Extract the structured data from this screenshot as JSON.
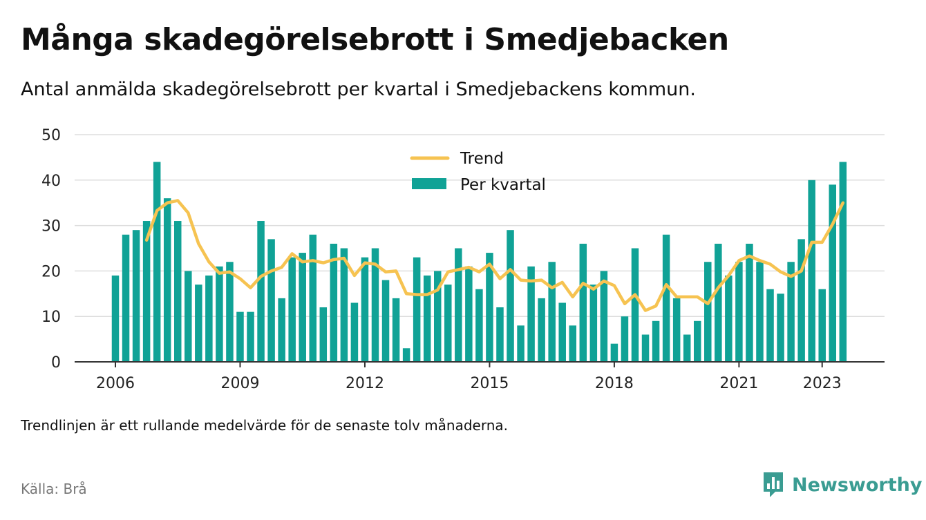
{
  "header": {
    "title": "Många skadegörelsebrott i Smedjebacken",
    "subtitle": "Antal anmälda skadegörelsebrott per kvartal i Smedjebackens kommun."
  },
  "footer": {
    "note": "Trendlinjen är ett rullande medelvärde för de senaste tolv månaderna.",
    "source": "Källa: Brå",
    "brand": "Newsworthy"
  },
  "colors": {
    "bar": "#10a296",
    "trend": "#f6c351",
    "grid": "#dddddd",
    "axis": "#333333",
    "text": "#111111",
    "brand": "#3a9c92"
  },
  "icons": {
    "brand_logo": "newsworthy-bar-chart-logo"
  },
  "chart_data": {
    "type": "bar",
    "x_start": "2006 Q1",
    "x_tick_labels": [
      "2006",
      "2009",
      "2012",
      "2015",
      "2018",
      "2021",
      "2023"
    ],
    "ylim": [
      0,
      50
    ],
    "y_ticks": [
      0,
      10,
      20,
      30,
      40,
      50
    ],
    "grid": true,
    "legend_position": "top-center",
    "series": [
      {
        "name": "Per kvartal",
        "kind": "bar",
        "values": [
          19,
          28,
          29,
          31,
          44,
          36,
          31,
          20,
          17,
          19,
          21,
          22,
          11,
          11,
          31,
          27,
          14,
          23,
          24,
          28,
          12,
          26,
          25,
          13,
          23,
          25,
          18,
          14,
          3,
          23,
          19,
          20,
          17,
          25,
          21,
          16,
          24,
          12,
          29,
          8,
          21,
          14,
          22,
          13,
          8,
          26,
          17,
          20,
          4,
          10,
          25,
          6,
          9,
          28,
          14,
          6,
          9,
          22,
          26,
          19,
          22,
          26,
          22,
          16,
          15,
          22,
          27,
          40,
          16,
          39,
          44
        ]
      },
      {
        "name": "Trend",
        "kind": "line",
        "values": [
          null,
          null,
          null,
          26.8,
          33.3,
          35.0,
          35.5,
          32.8,
          26.0,
          22.0,
          19.5,
          19.8,
          18.3,
          16.3,
          18.8,
          20.0,
          20.8,
          23.8,
          22.0,
          22.3,
          21.8,
          22.5,
          22.8,
          19.0,
          21.8,
          21.5,
          19.8,
          20.0,
          15.0,
          14.8,
          14.8,
          15.8,
          19.8,
          20.3,
          20.8,
          19.8,
          21.5,
          18.3,
          20.3,
          18.0,
          17.8,
          18.0,
          16.3,
          17.5,
          14.3,
          17.3,
          16.0,
          17.8,
          16.8,
          12.8,
          14.8,
          11.3,
          12.3,
          17.0,
          14.3,
          14.3,
          14.3,
          12.8,
          16.3,
          19.0,
          22.3,
          23.3,
          22.3,
          21.5,
          19.8,
          18.8,
          20.0,
          26.3,
          26.3,
          30.3,
          35.0
        ]
      }
    ]
  }
}
